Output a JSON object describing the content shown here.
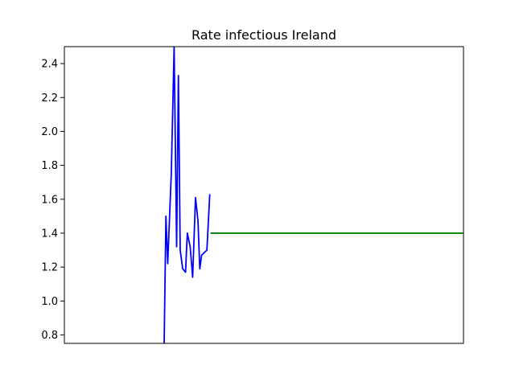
{
  "chart_data": {
    "type": "line",
    "title": "Rate infectious Ireland",
    "xlabel": "",
    "ylabel": "",
    "ylim": [
      0.75,
      2.5
    ],
    "xlim": [
      0,
      112
    ],
    "yticks": [
      "0.8",
      "1.0",
      "1.2",
      "1.4",
      "1.6",
      "1.8",
      "2.0",
      "2.2",
      "2.4"
    ],
    "xticks": [],
    "grid": false,
    "legend": "none",
    "series": [
      {
        "color": "#0000ff",
        "x": [
          28,
          28.5,
          29,
          30,
          30.8,
          31.5,
          32,
          32.5,
          33.2,
          34,
          34.5,
          35.3,
          36,
          36.8,
          37.5,
          38,
          38.5,
          39,
          40,
          40.8
        ],
        "y": [
          0.75,
          1.5,
          1.22,
          1.75,
          2.5,
          1.32,
          2.33,
          1.3,
          1.19,
          1.17,
          1.4,
          1.32,
          1.14,
          1.61,
          1.47,
          1.19,
          1.27,
          1.28,
          1.3,
          1.63
        ]
      },
      {
        "color": "#008000",
        "x": [
          41,
          112
        ],
        "y": [
          1.4,
          1.4
        ]
      }
    ]
  }
}
